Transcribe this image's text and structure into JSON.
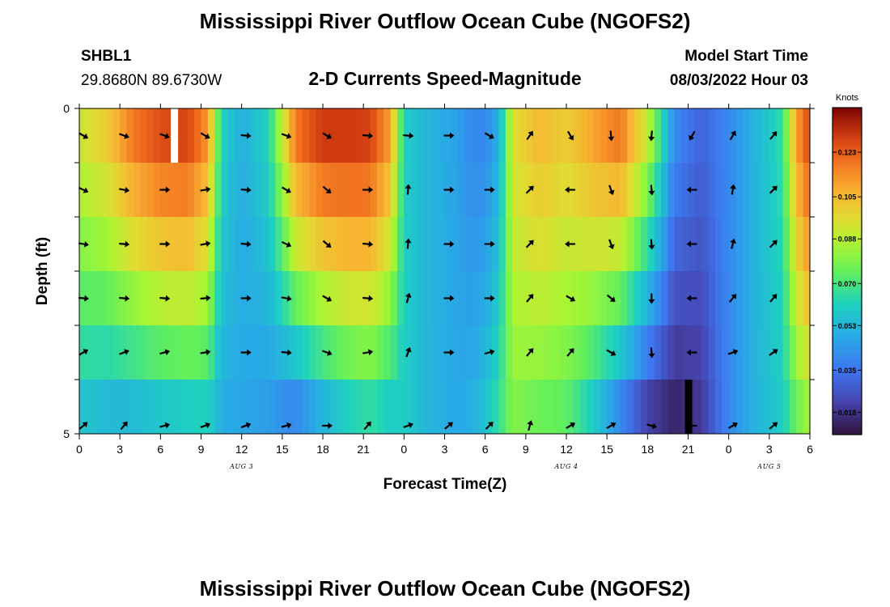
{
  "header": {
    "title": "Mississippi River Outflow Ocean Cube (NGOFS2)",
    "station_id": "SHBL1",
    "station_coords": "29.8680N  89.6730W",
    "subtitle": "2-D Currents Speed-Magnitude",
    "model_start_label": "Model Start Time",
    "model_start_value": "08/03/2022 Hour 03"
  },
  "footer": {
    "title": "Mississippi River Outflow Ocean Cube (NGOFS2)"
  },
  "chart_data": {
    "type": "heatmap",
    "title": "2-D Currents Speed-Magnitude",
    "xlabel": "Forecast Time(Z)",
    "ylabel": "Depth (ft)",
    "x_hours": [
      0,
      3,
      6,
      9,
      12,
      15,
      18,
      21,
      24,
      27,
      30,
      33,
      36,
      39,
      42,
      45,
      48,
      51
    ],
    "x_tick_labels": [
      "0",
      "3",
      "6",
      "9",
      "12",
      "15",
      "18",
      "21",
      "0",
      "3",
      "6",
      "9",
      "12",
      "15",
      "18",
      "21",
      "0",
      "3",
      "6"
    ],
    "x_ticks_hours": [
      0,
      3,
      6,
      9,
      12,
      15,
      18,
      21,
      24,
      27,
      30,
      33,
      36,
      39,
      42,
      45,
      48,
      51,
      54
    ],
    "xlim": [
      0,
      54
    ],
    "date_labels": [
      {
        "label": "AUG 3",
        "hour": 12
      },
      {
        "label": "AUG 4",
        "hour": 36
      },
      {
        "label": "AUG 5",
        "hour": 51
      }
    ],
    "y_tick_labels": [
      "0",
      "5"
    ],
    "ylim": [
      0,
      5
    ],
    "depth_levels": 5,
    "colorbar": {
      "unit": "Knots",
      "ticks": [
        "0.123",
        "0.105",
        "0.088",
        "0.070",
        "0.053",
        "0.035",
        "0.018"
      ],
      "tick_values": [
        0.123,
        0.105,
        0.088,
        0.07,
        0.053,
        0.035,
        0.018
      ],
      "range": [
        0.009,
        0.141
      ]
    },
    "speed_profile_knots": {
      "hours": [
        0,
        2,
        4,
        6,
        8,
        9.5,
        10.5,
        12,
        14,
        16,
        18,
        20,
        21.5,
        23,
        24,
        26,
        28,
        29,
        30,
        31,
        32,
        34,
        36,
        38,
        40,
        42,
        44,
        46,
        48,
        50,
        52,
        53,
        54
      ],
      "surface": [
        0.092,
        0.1,
        0.118,
        0.126,
        0.128,
        0.112,
        0.062,
        0.05,
        0.062,
        0.118,
        0.13,
        0.13,
        0.128,
        0.11,
        0.06,
        0.052,
        0.046,
        0.04,
        0.04,
        0.05,
        0.095,
        0.105,
        0.1,
        0.11,
        0.118,
        0.09,
        0.04,
        0.03,
        0.04,
        0.052,
        0.066,
        0.11,
        0.128
      ],
      "bottom": [
        0.058,
        0.054,
        0.054,
        0.058,
        0.06,
        0.062,
        0.05,
        0.048,
        0.045,
        0.04,
        0.052,
        0.062,
        0.066,
        0.06,
        0.06,
        0.052,
        0.048,
        0.05,
        0.056,
        0.066,
        0.08,
        0.076,
        0.074,
        0.06,
        0.04,
        0.022,
        0.014,
        0.02,
        0.04,
        0.052,
        0.06,
        0.076,
        0.086
      ]
    },
    "vectors_direction_deg": {
      "note": "compass direction toward which current flows (0=north, 90=east), per forecast hour and depth level",
      "hours": [
        0,
        3,
        6,
        9,
        12,
        15,
        18,
        21,
        24,
        27,
        30,
        33,
        36,
        39,
        42,
        45,
        48,
        51
      ],
      "levels": [
        [
          120,
          110,
          110,
          120,
          95,
          110,
          120,
          95,
          95,
          90,
          120,
          35,
          150,
          175,
          185,
          210,
          30,
          40
        ],
        [
          115,
          100,
          90,
          80,
          95,
          120,
          130,
          90,
          5,
          90,
          90,
          45,
          270,
          160,
          175,
          270,
          10,
          45
        ],
        [
          100,
          95,
          90,
          80,
          95,
          115,
          130,
          95,
          5,
          90,
          90,
          45,
          270,
          160,
          175,
          270,
          15,
          45
        ],
        [
          95,
          95,
          95,
          85,
          90,
          100,
          120,
          95,
          15,
          90,
          90,
          40,
          120,
          130,
          180,
          270,
          40,
          40
        ],
        [
          60,
          70,
          75,
          80,
          90,
          95,
          110,
          80,
          20,
          90,
          75,
          40,
          40,
          120,
          175,
          270,
          70,
          55
        ],
        [
          50,
          40,
          75,
          70,
          70,
          75,
          90,
          40,
          70,
          50,
          45,
          15,
          60,
          60,
          105,
          270,
          60,
          50
        ]
      ]
    },
    "masked_cells": [
      {
        "hour": 7,
        "level": 0,
        "color": "#ffffff"
      },
      {
        "hour": 45,
        "level": 5,
        "color": "#000000"
      }
    ]
  }
}
